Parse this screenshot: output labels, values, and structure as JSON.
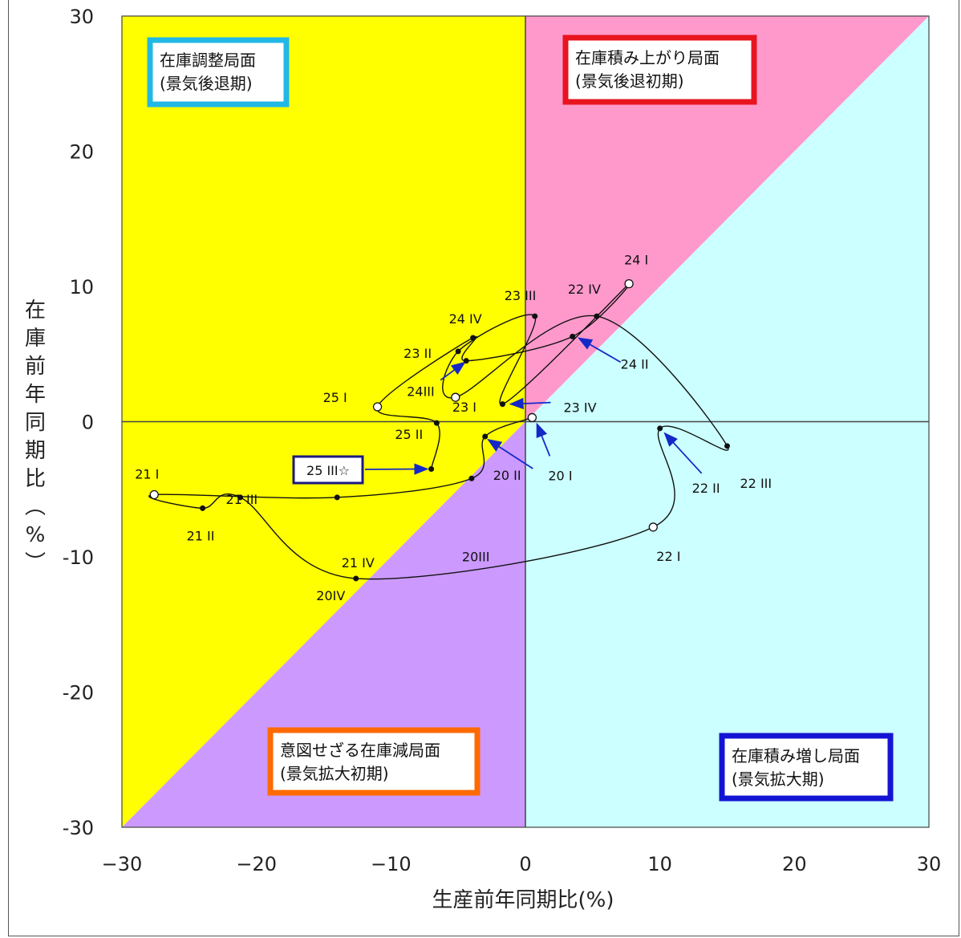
{
  "chart_data": {
    "type": "scatter",
    "xlabel": "生産前年同期比(%)",
    "ylabel": "在庫前年同期比(%)",
    "xlim": [
      -30,
      30
    ],
    "ylim": [
      -30,
      30
    ],
    "xticks": [
      "−30",
      "−20",
      "−10",
      "0",
      "10",
      "20",
      "30"
    ],
    "yticks": [
      "30",
      "20",
      "10",
      "0",
      "-10",
      "-20",
      "-30"
    ],
    "quadrant_colors": {
      "upper_left": "#ffff00",
      "upper_right_above_diagonal": "#ff99cc",
      "lower_left_below_diagonal": "#cc99ff",
      "lower_right": "#ccffff"
    },
    "regions": [
      {
        "text_line1": "在庫調整局面",
        "text_line2": "(景気後退期)",
        "border": "#22b8e6"
      },
      {
        "text_line1": "在庫積み上がり局面",
        "text_line2": "(景気後退初期)",
        "border": "#e8141e"
      },
      {
        "text_line1": "意図せざる在庫減局面",
        "text_line2": "(景気拡大初期)",
        "border": "#ff6a00"
      },
      {
        "text_line1": "在庫積み増し局面",
        "text_line2": "(景気拡大期)",
        "border": "#1414d4"
      }
    ],
    "points": [
      {
        "label": "20 I",
        "x": 0.5,
        "y": 0.3,
        "open": true
      },
      {
        "label": "20 II",
        "x": -3.0,
        "y": -1.1,
        "open": false
      },
      {
        "label": "20III",
        "x": -4.0,
        "y": -4.2,
        "open": false
      },
      {
        "label": "20IV",
        "x": -14.0,
        "y": -5.6,
        "open": false
      },
      {
        "label": "21 I",
        "x": -27.6,
        "y": -5.4,
        "open": true
      },
      {
        "label": "21 II",
        "x": -24.0,
        "y": -6.4,
        "open": false
      },
      {
        "label": "21 III",
        "x": -21.2,
        "y": -5.6,
        "open": false
      },
      {
        "label": "21 IV",
        "x": -12.6,
        "y": -11.6,
        "open": false
      },
      {
        "label": "22 I",
        "x": 9.5,
        "y": -7.8,
        "open": true
      },
      {
        "label": "22 II",
        "x": 10.0,
        "y": -0.5,
        "open": false
      },
      {
        "label": "22 III",
        "x": 15.0,
        "y": -1.8,
        "open": false
      },
      {
        "label": "22 IV",
        "x": 5.3,
        "y": 7.8,
        "open": false
      },
      {
        "label": "23 I",
        "x": -5.2,
        "y": 1.8,
        "open": true
      },
      {
        "label": "23 II",
        "x": -5.0,
        "y": 5.2,
        "open": false
      },
      {
        "label": "23 III",
        "x": 0.7,
        "y": 7.8,
        "open": false
      },
      {
        "label": "23 IV",
        "x": -1.7,
        "y": 1.3,
        "open": false
      },
      {
        "label": "24 I",
        "x": 7.7,
        "y": 10.2,
        "open": true
      },
      {
        "label": "24 II",
        "x": 3.5,
        "y": 6.3,
        "open": false
      },
      {
        "label": "24III",
        "x": -4.4,
        "y": 4.5,
        "open": false
      },
      {
        "label": "24 IV",
        "x": -3.9,
        "y": 6.2,
        "open": false
      },
      {
        "label": "25 I",
        "x": -11.0,
        "y": 1.1,
        "open": true
      },
      {
        "label": "25 II",
        "x": -6.6,
        "y": -0.1,
        "open": false
      },
      {
        "label": "25 III☆",
        "x": -7.0,
        "y": -3.5,
        "open": false
      }
    ],
    "path_order": [
      "20 I",
      "20 II",
      "20III",
      "20IV",
      "21 I",
      "21 II",
      "21 III",
      "21 IV",
      "22 I",
      "22 II",
      "22 III",
      "22 IV",
      "23 I",
      "23 II",
      "23 III",
      "23 IV",
      "24 I",
      "24 II",
      "24III",
      "24 IV",
      "25 I",
      "25 II",
      "25 III☆"
    ]
  }
}
